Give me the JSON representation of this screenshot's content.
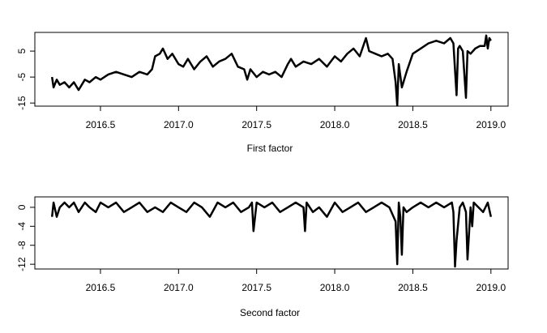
{
  "chart_data": [
    {
      "type": "line",
      "x_label": "First factor",
      "x": [
        2016.19,
        2016.2,
        2016.22,
        2016.24,
        2016.27,
        2016.3,
        2016.33,
        2016.36,
        2016.4,
        2016.43,
        2016.47,
        2016.5,
        2016.55,
        2016.6,
        2016.65,
        2016.7,
        2016.75,
        2016.8,
        2016.83,
        2016.85,
        2016.88,
        2016.9,
        2016.93,
        2016.96,
        2017.0,
        2017.03,
        2017.06,
        2017.1,
        2017.14,
        2017.18,
        2017.22,
        2017.26,
        2017.3,
        2017.34,
        2017.38,
        2017.42,
        2017.44,
        2017.46,
        2017.5,
        2017.54,
        2017.58,
        2017.62,
        2017.66,
        2017.7,
        2017.72,
        2017.75,
        2017.8,
        2017.85,
        2017.9,
        2017.95,
        2018.0,
        2018.04,
        2018.08,
        2018.12,
        2018.16,
        2018.2,
        2018.22,
        2018.26,
        2018.3,
        2018.34,
        2018.37,
        2018.39,
        2018.4,
        2018.41,
        2018.43,
        2018.46,
        2018.5,
        2018.55,
        2018.6,
        2018.65,
        2018.7,
        2018.74,
        2018.76,
        2018.78,
        2018.79,
        2018.8,
        2018.82,
        2018.84,
        2018.85,
        2018.87,
        2018.9,
        2018.93,
        2018.96,
        2018.97,
        2018.98,
        2018.99,
        2019.0
      ],
      "series": [
        {
          "color": "#000000",
          "values": [
            -5,
            -9,
            -6,
            -8,
            -7,
            -9,
            -7,
            -10,
            -6,
            -7,
            -5,
            -6,
            -4,
            -3,
            -4,
            -5,
            -3,
            -4,
            -2,
            3,
            4,
            6,
            2,
            4,
            0,
            -1,
            2,
            -2,
            1,
            3,
            -1,
            1,
            2,
            4,
            -1,
            -2,
            -6,
            -2,
            -5,
            -3,
            -4,
            -3,
            -5,
            0,
            2,
            -1,
            1,
            0,
            2,
            -1,
            3,
            1,
            4,
            6,
            3,
            10,
            5,
            4,
            3,
            4,
            2,
            -7,
            -16,
            0,
            -9,
            -3,
            4,
            6,
            8,
            9,
            8,
            10,
            8,
            -12,
            6,
            7,
            5,
            -13,
            5,
            4,
            6,
            7,
            7,
            11,
            6,
            10,
            9
          ]
        }
      ],
      "xlim": [
        2016.08,
        2019.11
      ],
      "ylim": [
        -16.2,
        12.2
      ],
      "xticks": [
        2016.5,
        {
          "value": 2017,
          "label": "2017.0"
        },
        2017.5,
        {
          "value": 2018,
          "label": "2018.0"
        },
        2018.5,
        {
          "value": 2019,
          "label": "2019.0"
        }
      ],
      "yticks": [
        -15,
        -5,
        5
      ]
    },
    {
      "type": "line",
      "x_label": "Second factor",
      "x": [
        2016.19,
        2016.2,
        2016.22,
        2016.24,
        2016.27,
        2016.3,
        2016.33,
        2016.36,
        2016.4,
        2016.43,
        2016.47,
        2016.5,
        2016.55,
        2016.6,
        2016.65,
        2016.7,
        2016.75,
        2016.8,
        2016.85,
        2016.9,
        2016.95,
        2017.0,
        2017.05,
        2017.1,
        2017.15,
        2017.2,
        2017.25,
        2017.3,
        2017.35,
        2017.4,
        2017.45,
        2017.47,
        2017.48,
        2017.5,
        2017.55,
        2017.6,
        2017.65,
        2017.7,
        2017.75,
        2017.8,
        2017.81,
        2017.82,
        2017.86,
        2017.9,
        2017.95,
        2018.0,
        2018.05,
        2018.1,
        2018.15,
        2018.2,
        2018.25,
        2018.3,
        2018.35,
        2018.39,
        2018.4,
        2018.41,
        2018.42,
        2018.43,
        2018.44,
        2018.46,
        2018.5,
        2018.55,
        2018.6,
        2018.65,
        2018.7,
        2018.75,
        2018.76,
        2018.77,
        2018.78,
        2018.8,
        2018.82,
        2018.84,
        2018.85,
        2018.87,
        2018.88,
        2018.89,
        2018.92,
        2018.95,
        2018.98,
        2019.0
      ],
      "series": [
        {
          "color": "#000000",
          "values": [
            -2,
            1,
            -2,
            0,
            1,
            0,
            1,
            -1,
            1,
            0,
            -1,
            1,
            0,
            1,
            -1,
            0,
            1,
            -1,
            0,
            -1,
            1,
            0,
            -1,
            1,
            0,
            -2,
            1,
            0,
            1,
            -1,
            0,
            1,
            -5,
            1,
            0,
            1,
            -1,
            0,
            1,
            0,
            -5,
            1,
            -1,
            0,
            -2,
            1,
            -1,
            0,
            1,
            -1,
            0,
            1,
            0,
            -3,
            -12,
            1,
            -2,
            -10,
            0,
            -1,
            0,
            1,
            0,
            1,
            0,
            1,
            -1,
            -12.5,
            -7,
            0,
            1,
            -1,
            -11,
            0,
            -4,
            1,
            0,
            -1,
            1,
            -2
          ]
        }
      ],
      "xlim": [
        2016.08,
        2019.11
      ],
      "ylim": [
        -13,
        2.2
      ],
      "xticks": [
        2016.5,
        {
          "value": 2017,
          "label": "2017.0"
        },
        2017.5,
        {
          "value": 2018,
          "label": "2018.0"
        },
        2018.5,
        {
          "value": 2019,
          "label": "2019.0"
        }
      ],
      "yticks": [
        0,
        -4,
        -8,
        -12
      ]
    }
  ]
}
